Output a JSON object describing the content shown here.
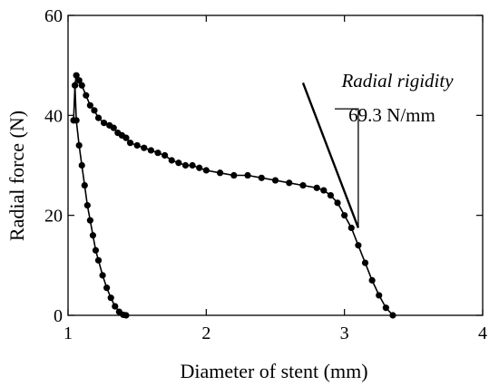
{
  "chart_data": {
    "type": "scatter",
    "title": "",
    "xlabel": "Diameter of stent (mm)",
    "ylabel": "Radial force (N)",
    "xlim": [
      1,
      4
    ],
    "ylim": [
      0,
      60
    ],
    "x_ticks": [
      1,
      2,
      3,
      4
    ],
    "x_tick_labels": [
      "1",
      "2",
      "3",
      "4"
    ],
    "y_ticks": [
      0,
      20,
      40,
      60
    ],
    "y_tick_labels": [
      "0",
      "20",
      "40",
      "60"
    ],
    "grid": false,
    "legend": "none",
    "color": "#000000",
    "series": [
      {
        "x": [
          1.04,
          1.05,
          1.06,
          1.08,
          1.1,
          1.13,
          1.16,
          1.19,
          1.22,
          1.26,
          1.3,
          1.33,
          1.36,
          1.39,
          1.42,
          1.45,
          1.5,
          1.55,
          1.6,
          1.65,
          1.7,
          1.75,
          1.8,
          1.85,
          1.9,
          1.95,
          2.0,
          2.1,
          2.2,
          2.3,
          2.4,
          2.5,
          2.6,
          2.7,
          2.8,
          2.85,
          2.9,
          2.95,
          3.0,
          3.05,
          3.1,
          3.15,
          3.2,
          3.25,
          3.3,
          3.35
        ],
        "y": [
          39,
          46,
          48,
          47,
          46,
          44,
          42,
          41,
          39.5,
          38.5,
          38,
          37.5,
          36.5,
          36,
          35.5,
          34.5,
          34,
          33.5,
          33,
          32.5,
          32,
          31,
          30.5,
          30,
          30,
          29.5,
          29,
          28.5,
          28,
          28,
          27.5,
          27,
          26.5,
          26,
          25.5,
          25,
          24,
          22.5,
          20,
          17.5,
          14,
          10.5,
          7,
          4,
          1.5,
          0
        ]
      },
      {
        "x": [
          1.05,
          1.06,
          1.08,
          1.1,
          1.12,
          1.14,
          1.16,
          1.18,
          1.2,
          1.22,
          1.25,
          1.28,
          1.31,
          1.34,
          1.37,
          1.4,
          1.42
        ],
        "y": [
          46,
          39,
          34,
          30,
          26,
          22,
          19,
          16,
          13,
          11,
          8,
          5.5,
          3.5,
          1.8,
          0.7,
          0.1,
          0
        ]
      }
    ],
    "annotations": {
      "rigidity_label": "Radial rigidity",
      "rigidity_value": "69.3 N/mm",
      "tangent_line": {
        "x": [
          2.7,
          3.1
        ],
        "y": [
          46.5,
          17.5
        ]
      },
      "slope_triangle": {
        "x": [
          2.93,
          3.1
        ],
        "y": [
          41.3,
          17.5
        ]
      }
    }
  }
}
